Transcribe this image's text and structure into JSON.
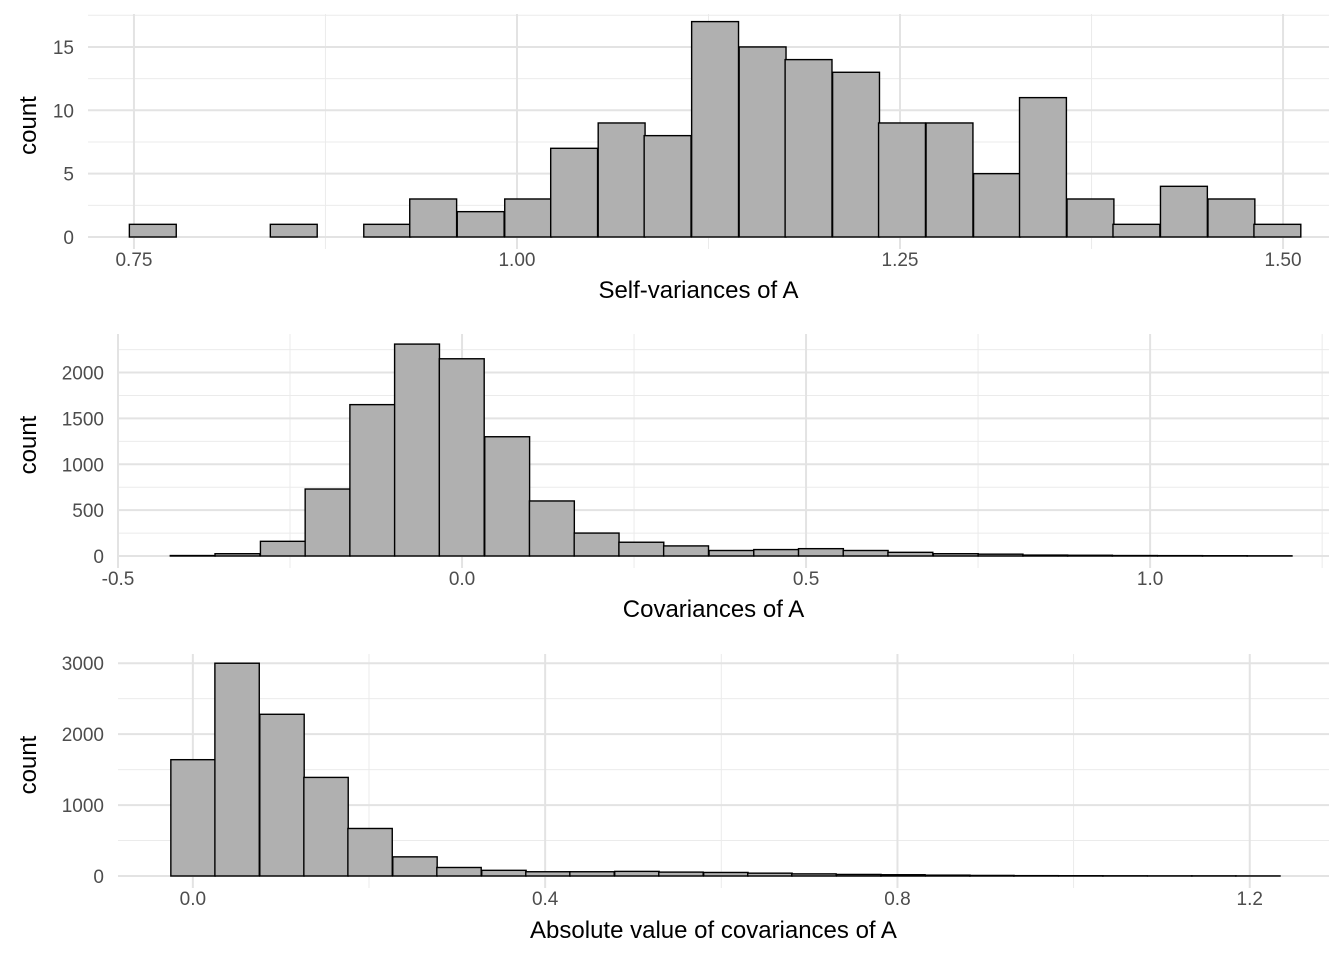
{
  "chart_data": [
    {
      "type": "bar",
      "xlabel": "Self-variances of A",
      "ylabel": "count",
      "bin_width": 0.0306,
      "bins": [
        {
          "x0": 0.747,
          "count": 1
        },
        {
          "x0": 0.777,
          "count": 0
        },
        {
          "x0": 0.808,
          "count": 0
        },
        {
          "x0": 0.839,
          "count": 1
        },
        {
          "x0": 0.869,
          "count": 0
        },
        {
          "x0": 0.9,
          "count": 1
        },
        {
          "x0": 0.93,
          "count": 3
        },
        {
          "x0": 0.961,
          "count": 2
        },
        {
          "x0": 0.992,
          "count": 3
        },
        {
          "x0": 1.022,
          "count": 7
        },
        {
          "x0": 1.053,
          "count": 9
        },
        {
          "x0": 1.083,
          "count": 8
        },
        {
          "x0": 1.114,
          "count": 17
        },
        {
          "x0": 1.145,
          "count": 15
        },
        {
          "x0": 1.175,
          "count": 14
        },
        {
          "x0": 1.206,
          "count": 13
        },
        {
          "x0": 1.236,
          "count": 9
        },
        {
          "x0": 1.267,
          "count": 9
        },
        {
          "x0": 1.298,
          "count": 5
        },
        {
          "x0": 1.328,
          "count": 11
        },
        {
          "x0": 1.359,
          "count": 3
        },
        {
          "x0": 1.389,
          "count": 1
        },
        {
          "x0": 1.42,
          "count": 4
        },
        {
          "x0": 1.451,
          "count": 3
        },
        {
          "x0": 1.481,
          "count": 1
        }
      ],
      "xlim": [
        0.72,
        1.53
      ],
      "ylim": [
        0,
        17.6
      ],
      "x_ticks": [
        0.75,
        1.0,
        1.25,
        1.5
      ],
      "x_tick_labels": [
        "0.75",
        "1.00",
        "1.25",
        "1.50"
      ],
      "y_ticks": [
        0,
        5,
        10,
        15
      ],
      "y_tick_labels": [
        "0",
        "5",
        "10",
        "15"
      ],
      "grid": true,
      "bar_fill": "#b0b0b0",
      "bar_stroke": "#000000"
    },
    {
      "type": "bar",
      "xlabel": "Covariances of A",
      "ylabel": "count",
      "bin_width": 0.0652,
      "bins": [
        {
          "x0": -0.424,
          "count": 5
        },
        {
          "x0": -0.359,
          "count": 25
        },
        {
          "x0": -0.293,
          "count": 160
        },
        {
          "x0": -0.228,
          "count": 730
        },
        {
          "x0": -0.163,
          "count": 1650
        },
        {
          "x0": -0.098,
          "count": 2310
        },
        {
          "x0": -0.033,
          "count": 2150
        },
        {
          "x0": 0.033,
          "count": 1300
        },
        {
          "x0": 0.098,
          "count": 600
        },
        {
          "x0": 0.163,
          "count": 250
        },
        {
          "x0": 0.228,
          "count": 150
        },
        {
          "x0": 0.293,
          "count": 110
        },
        {
          "x0": 0.359,
          "count": 60
        },
        {
          "x0": 0.424,
          "count": 70
        },
        {
          "x0": 0.489,
          "count": 80
        },
        {
          "x0": 0.554,
          "count": 60
        },
        {
          "x0": 0.619,
          "count": 40
        },
        {
          "x0": 0.685,
          "count": 25
        },
        {
          "x0": 0.75,
          "count": 20
        },
        {
          "x0": 0.815,
          "count": 10
        },
        {
          "x0": 0.88,
          "count": 8
        },
        {
          "x0": 0.945,
          "count": 5
        },
        {
          "x0": 1.011,
          "count": 4
        },
        {
          "x0": 1.076,
          "count": 3
        },
        {
          "x0": 1.141,
          "count": 2
        }
      ],
      "xlim": [
        -0.5,
        1.26
      ],
      "ylim": [
        0,
        2420
      ],
      "x_ticks": [
        -0.5,
        0.0,
        0.5,
        1.0
      ],
      "x_tick_labels": [
        "-0.5",
        "0.0",
        "0.5",
        "1.0"
      ],
      "y_ticks": [
        0,
        500,
        1000,
        1500,
        2000
      ],
      "y_tick_labels": [
        "0",
        "500",
        "1000",
        "1500",
        "2000"
      ],
      "grid": true,
      "bar_fill": "#b0b0b0",
      "bar_stroke": "#000000"
    },
    {
      "type": "bar",
      "xlabel": "Absolute value of covariances of A",
      "ylabel": "count",
      "bin_width": 0.0504,
      "bins": [
        {
          "x0": -0.025,
          "count": 1640
        },
        {
          "x0": 0.025,
          "count": 3000
        },
        {
          "x0": 0.076,
          "count": 2280
        },
        {
          "x0": 0.126,
          "count": 1390
        },
        {
          "x0": 0.176,
          "count": 670
        },
        {
          "x0": 0.227,
          "count": 270
        },
        {
          "x0": 0.277,
          "count": 120
        },
        {
          "x0": 0.328,
          "count": 80
        },
        {
          "x0": 0.378,
          "count": 60
        },
        {
          "x0": 0.428,
          "count": 60
        },
        {
          "x0": 0.479,
          "count": 65
        },
        {
          "x0": 0.529,
          "count": 55
        },
        {
          "x0": 0.58,
          "count": 50
        },
        {
          "x0": 0.63,
          "count": 40
        },
        {
          "x0": 0.68,
          "count": 30
        },
        {
          "x0": 0.731,
          "count": 22
        },
        {
          "x0": 0.781,
          "count": 18
        },
        {
          "x0": 0.832,
          "count": 12
        },
        {
          "x0": 0.882,
          "count": 8
        },
        {
          "x0": 0.932,
          "count": 5
        },
        {
          "x0": 0.983,
          "count": 4
        },
        {
          "x0": 1.033,
          "count": 3
        },
        {
          "x0": 1.084,
          "count": 2
        },
        {
          "x0": 1.134,
          "count": 2
        },
        {
          "x0": 1.184,
          "count": 1
        }
      ],
      "xlim": [
        -0.085,
        1.29
      ],
      "ylim": [
        0,
        3130
      ],
      "x_ticks": [
        0.0,
        0.4,
        0.8,
        1.2
      ],
      "x_tick_labels": [
        "0.0",
        "0.4",
        "0.8",
        "1.2"
      ],
      "y_ticks": [
        0,
        1000,
        2000,
        3000
      ],
      "y_tick_labels": [
        "0",
        "1000",
        "2000",
        "3000"
      ],
      "grid": true,
      "bar_fill": "#b0b0b0",
      "bar_stroke": "#000000"
    }
  ]
}
